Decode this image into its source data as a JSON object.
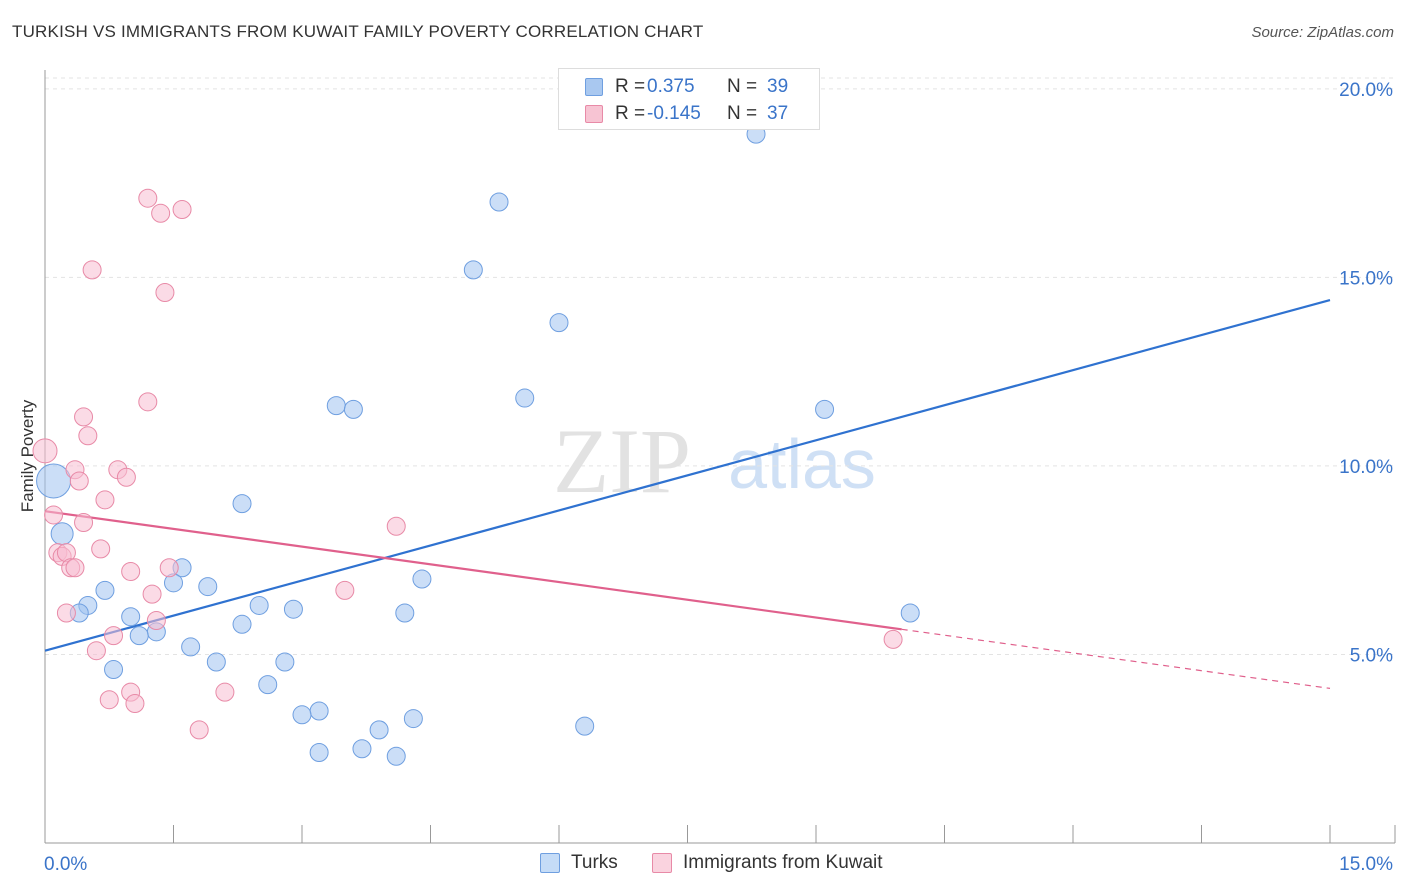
{
  "title": "TURKISH VS IMMIGRANTS FROM KUWAIT FAMILY POVERTY CORRELATION CHART",
  "source": "Source: ZipAtlas.com",
  "watermark": {
    "zip": "ZIP",
    "atlas": "atlas"
  },
  "legend": {
    "r_label": "R =",
    "n_label": "N =",
    "rows": [
      {
        "r": "0.375",
        "n": "39",
        "color": "#a9c8f0",
        "border": "#6f9fe0"
      },
      {
        "r": "-0.145",
        "n": "37",
        "color": "#f7c4d3",
        "border": "#e88aa7"
      }
    ]
  },
  "bottom_legend": [
    {
      "label": "Turks",
      "color": "#c5dcf7",
      "border": "#6f9fe0"
    },
    {
      "label": "Immigrants from Kuwait",
      "color": "#fad3df",
      "border": "#e88aa7"
    }
  ],
  "chart_data": {
    "type": "scatter",
    "title": "TURKISH VS IMMIGRANTS FROM KUWAIT FAMILY POVERTY CORRELATION CHART",
    "xlabel": "",
    "ylabel": "Family Poverty",
    "xlim": [
      0,
      15
    ],
    "ylim": [
      0,
      20
    ],
    "x_tick_labels": [
      "0.0%",
      "15.0%"
    ],
    "y_ticks": [
      5,
      10,
      15,
      20
    ],
    "y_tick_labels": [
      "5.0%",
      "10.0%",
      "15.0%",
      "20.0%"
    ],
    "grid": true,
    "series": [
      {
        "name": "Turks",
        "fill": "rgba(160,195,240,0.55)",
        "stroke": "#6f9fe0",
        "line_color": "#2f72d0",
        "trend": {
          "x1": 0,
          "y1": 5.1,
          "x2": 15,
          "y2": 14.4,
          "solid_to": 15
        },
        "points": [
          {
            "x": 8.3,
            "y": 18.8,
            "r": 9
          },
          {
            "x": 5.3,
            "y": 17.0,
            "r": 9
          },
          {
            "x": 5.0,
            "y": 15.2,
            "r": 9
          },
          {
            "x": 6.0,
            "y": 13.8,
            "r": 9
          },
          {
            "x": 5.6,
            "y": 11.8,
            "r": 9
          },
          {
            "x": 9.1,
            "y": 11.5,
            "r": 9
          },
          {
            "x": 3.4,
            "y": 11.6,
            "r": 9
          },
          {
            "x": 3.6,
            "y": 11.5,
            "r": 9
          },
          {
            "x": 0.1,
            "y": 9.6,
            "r": 17
          },
          {
            "x": 2.3,
            "y": 9.0,
            "r": 9
          },
          {
            "x": 0.2,
            "y": 8.2,
            "r": 11
          },
          {
            "x": 1.6,
            "y": 7.3,
            "r": 9
          },
          {
            "x": 1.5,
            "y": 6.9,
            "r": 9
          },
          {
            "x": 1.9,
            "y": 6.8,
            "r": 9
          },
          {
            "x": 0.7,
            "y": 6.7,
            "r": 9
          },
          {
            "x": 4.4,
            "y": 7.0,
            "r": 9
          },
          {
            "x": 0.5,
            "y": 6.3,
            "r": 9
          },
          {
            "x": 0.4,
            "y": 6.1,
            "r": 9
          },
          {
            "x": 2.5,
            "y": 6.3,
            "r": 9
          },
          {
            "x": 2.9,
            "y": 6.2,
            "r": 9
          },
          {
            "x": 4.2,
            "y": 6.1,
            "r": 9
          },
          {
            "x": 1.0,
            "y": 6.0,
            "r": 9
          },
          {
            "x": 2.3,
            "y": 5.8,
            "r": 9
          },
          {
            "x": 1.3,
            "y": 5.6,
            "r": 9
          },
          {
            "x": 1.1,
            "y": 5.5,
            "r": 9
          },
          {
            "x": 1.7,
            "y": 5.2,
            "r": 9
          },
          {
            "x": 2.0,
            "y": 4.8,
            "r": 9
          },
          {
            "x": 2.8,
            "y": 4.8,
            "r": 9
          },
          {
            "x": 0.8,
            "y": 4.6,
            "r": 9
          },
          {
            "x": 2.6,
            "y": 4.2,
            "r": 9
          },
          {
            "x": 3.2,
            "y": 3.5,
            "r": 9
          },
          {
            "x": 3.0,
            "y": 3.4,
            "r": 9
          },
          {
            "x": 4.3,
            "y": 3.3,
            "r": 9
          },
          {
            "x": 3.9,
            "y": 3.0,
            "r": 9
          },
          {
            "x": 6.3,
            "y": 3.1,
            "r": 9
          },
          {
            "x": 3.7,
            "y": 2.5,
            "r": 9
          },
          {
            "x": 3.2,
            "y": 2.4,
            "r": 9
          },
          {
            "x": 4.1,
            "y": 2.3,
            "r": 9
          },
          {
            "x": 10.1,
            "y": 6.1,
            "r": 9
          }
        ]
      },
      {
        "name": "Immigrants from Kuwait",
        "fill": "rgba(247,190,210,0.55)",
        "stroke": "#e88aa7",
        "line_color": "#e0608c",
        "trend": {
          "x1": 0,
          "y1": 8.8,
          "x2": 15,
          "y2": 4.1,
          "solid_to": 10.0
        },
        "points": [
          {
            "x": 1.2,
            "y": 17.1,
            "r": 9
          },
          {
            "x": 1.6,
            "y": 16.8,
            "r": 9
          },
          {
            "x": 1.35,
            "y": 16.7,
            "r": 9
          },
          {
            "x": 0.55,
            "y": 15.2,
            "r": 9
          },
          {
            "x": 1.4,
            "y": 14.6,
            "r": 9
          },
          {
            "x": 1.2,
            "y": 11.7,
            "r": 9
          },
          {
            "x": 0.45,
            "y": 11.3,
            "r": 9
          },
          {
            "x": 0.5,
            "y": 10.8,
            "r": 9
          },
          {
            "x": 0.0,
            "y": 10.4,
            "r": 12
          },
          {
            "x": 0.35,
            "y": 9.9,
            "r": 9
          },
          {
            "x": 0.85,
            "y": 9.9,
            "r": 9
          },
          {
            "x": 0.95,
            "y": 9.7,
            "r": 9
          },
          {
            "x": 0.4,
            "y": 9.6,
            "r": 9
          },
          {
            "x": 0.7,
            "y": 9.1,
            "r": 9
          },
          {
            "x": 0.1,
            "y": 8.7,
            "r": 9
          },
          {
            "x": 0.45,
            "y": 8.5,
            "r": 9
          },
          {
            "x": 4.1,
            "y": 8.4,
            "r": 9
          },
          {
            "x": 0.65,
            "y": 7.8,
            "r": 9
          },
          {
            "x": 0.15,
            "y": 7.7,
            "r": 9
          },
          {
            "x": 0.2,
            "y": 7.6,
            "r": 9
          },
          {
            "x": 0.25,
            "y": 7.7,
            "r": 9
          },
          {
            "x": 0.3,
            "y": 7.3,
            "r": 9
          },
          {
            "x": 0.35,
            "y": 7.3,
            "r": 9
          },
          {
            "x": 1.45,
            "y": 7.3,
            "r": 9
          },
          {
            "x": 1.0,
            "y": 7.2,
            "r": 9
          },
          {
            "x": 3.5,
            "y": 6.7,
            "r": 9
          },
          {
            "x": 1.25,
            "y": 6.6,
            "r": 9
          },
          {
            "x": 0.25,
            "y": 6.1,
            "r": 9
          },
          {
            "x": 1.3,
            "y": 5.9,
            "r": 9
          },
          {
            "x": 0.8,
            "y": 5.5,
            "r": 9
          },
          {
            "x": 0.6,
            "y": 5.1,
            "r": 9
          },
          {
            "x": 9.9,
            "y": 5.4,
            "r": 9
          },
          {
            "x": 1.0,
            "y": 4.0,
            "r": 9
          },
          {
            "x": 2.1,
            "y": 4.0,
            "r": 9
          },
          {
            "x": 0.75,
            "y": 3.8,
            "r": 9
          },
          {
            "x": 1.05,
            "y": 3.7,
            "r": 9
          },
          {
            "x": 1.8,
            "y": 3.0,
            "r": 9
          }
        ]
      }
    ]
  }
}
